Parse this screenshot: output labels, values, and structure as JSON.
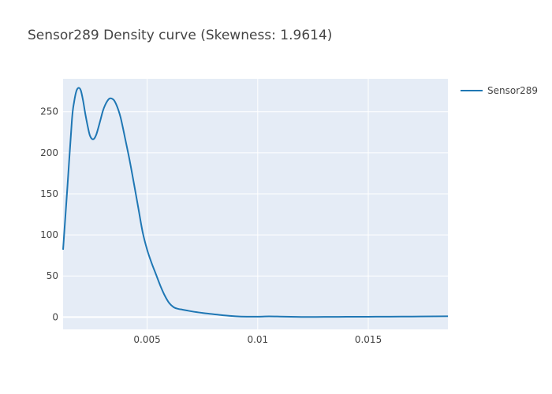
{
  "chart_data": {
    "type": "line",
    "title": "Sensor289 Density curve (Skewness: 1.9614)",
    "xlabel": "",
    "ylabel": "",
    "xlim": [
      0.0012,
      0.0186
    ],
    "ylim": [
      -15,
      290
    ],
    "x_ticks": [
      0.005,
      0.01,
      0.015
    ],
    "x_tick_labels": [
      "0.005",
      "0.01",
      "0.015"
    ],
    "y_ticks": [
      0,
      50,
      100,
      150,
      200,
      250
    ],
    "y_tick_labels": [
      "0",
      "50",
      "100",
      "150",
      "200",
      "250"
    ],
    "grid": true,
    "legend_position": "top-right",
    "colors": {
      "plot_bg": "#e5ecf6",
      "grid": "#ffffff",
      "line": "#1f77b4"
    },
    "series": [
      {
        "name": "Sensor289",
        "x": [
          0.0012,
          0.0014,
          0.0016,
          0.0017,
          0.0018,
          0.0019,
          0.002,
          0.0021,
          0.0022,
          0.0023,
          0.0024,
          0.0025,
          0.0026,
          0.0027,
          0.0028,
          0.0029,
          0.003,
          0.0031,
          0.0032,
          0.0033,
          0.0034,
          0.0035,
          0.0036,
          0.0037,
          0.0038,
          0.0039,
          0.004,
          0.0042,
          0.0044,
          0.0046,
          0.0048,
          0.005,
          0.0052,
          0.0054,
          0.0056,
          0.0058,
          0.006,
          0.0062,
          0.0064,
          0.0066,
          0.0068,
          0.007,
          0.0075,
          0.008,
          0.0085,
          0.009,
          0.0095,
          0.01,
          0.0105,
          0.011,
          0.0115,
          0.012,
          0.0125,
          0.013,
          0.014,
          0.015,
          0.016,
          0.017,
          0.018,
          0.0186
        ],
        "y": [
          82,
          160,
          240,
          262,
          275,
          279,
          276,
          264,
          248,
          234,
          222,
          217,
          217,
          222,
          231,
          241,
          251,
          258,
          263,
          266,
          266,
          264,
          259,
          252,
          243,
          231,
          218,
          192,
          163,
          133,
          103,
          82,
          66,
          52,
          38,
          26,
          17,
          12,
          10,
          9,
          8,
          7,
          5,
          3.5,
          2,
          1,
          0.5,
          0.5,
          0.8,
          0.6,
          0.3,
          0.1,
          0.1,
          0.2,
          0.3,
          0.4,
          0.5,
          0.6,
          0.8,
          1
        ]
      }
    ]
  }
}
